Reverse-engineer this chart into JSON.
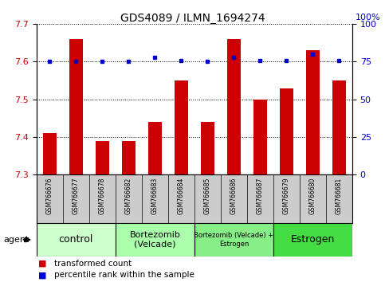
{
  "title": "GDS4089 / ILMN_1694274",
  "samples": [
    "GSM766676",
    "GSM766677",
    "GSM766678",
    "GSM766682",
    "GSM766683",
    "GSM766684",
    "GSM766685",
    "GSM766686",
    "GSM766687",
    "GSM766679",
    "GSM766680",
    "GSM766681"
  ],
  "transformed_count": [
    7.41,
    7.66,
    7.39,
    7.39,
    7.44,
    7.55,
    7.44,
    7.66,
    7.5,
    7.53,
    7.63,
    7.55
  ],
  "percentile_rank": [
    75,
    75,
    75,
    75,
    78,
    76,
    75,
    78,
    76,
    76,
    80,
    76
  ],
  "bar_color": "#cc0000",
  "dot_color": "#0000cc",
  "ylim_left": [
    7.3,
    7.7
  ],
  "ylim_right": [
    0,
    100
  ],
  "yticks_left": [
    7.3,
    7.4,
    7.5,
    7.6,
    7.7
  ],
  "yticks_right": [
    0,
    25,
    50,
    75,
    100
  ],
  "groups": [
    {
      "label": "control",
      "start": 0,
      "end": 3,
      "color": "#ccffcc",
      "fontsize": 9
    },
    {
      "label": "Bortezomib\n(Velcade)",
      "start": 3,
      "end": 6,
      "color": "#aaffaa",
      "fontsize": 8
    },
    {
      "label": "Bortezomib (Velcade) +\nEstrogen",
      "start": 6,
      "end": 9,
      "color": "#88ee88",
      "fontsize": 6
    },
    {
      "label": "Estrogen",
      "start": 9,
      "end": 12,
      "color": "#44dd44",
      "fontsize": 9
    }
  ],
  "agent_label": "agent",
  "legend_bar_label": "transformed count",
  "legend_dot_label": "percentile rank within the sample",
  "tick_area_color": "#cccccc"
}
